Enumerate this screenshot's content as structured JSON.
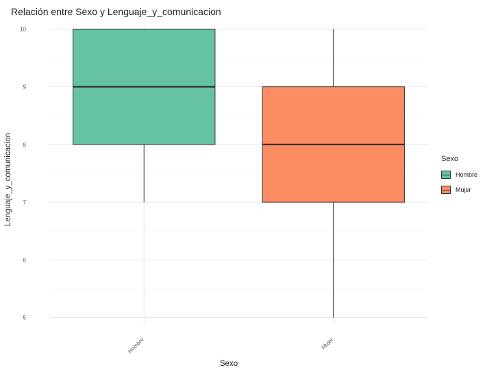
{
  "chart_data": {
    "type": "boxplot",
    "title": "Relación entre Sexo y Lenguaje_y_comunicacion",
    "xlabel": "Sexo",
    "ylabel": "Lenguaje_y_comunicacion",
    "ylim": [
      4.9,
      10.1
    ],
    "yticks": [
      5,
      6,
      7,
      8,
      9,
      10
    ],
    "grid": true,
    "legend": {
      "title": "Sexo",
      "placement": "right",
      "entries": [
        "Hombre",
        "Mujer"
      ]
    },
    "categories": [
      "Hombre",
      "Mujer"
    ],
    "series": [
      {
        "category": "Hombre",
        "min": 7,
        "q1": 8,
        "median": 9,
        "q3": 10,
        "max": 10,
        "color": "#66c2a5"
      },
      {
        "category": "Mujer",
        "min": 5,
        "q1": 7,
        "median": 8,
        "q3": 9,
        "max": 10,
        "color": "#fc8d62"
      }
    ]
  }
}
